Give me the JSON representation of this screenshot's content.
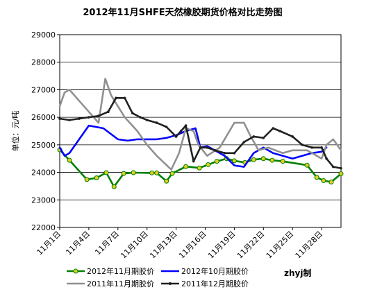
{
  "chart_data": {
    "type": "line",
    "title": "2012年11月SHFE天然橡胶期货价格对比走势图",
    "ylabel": "单位：元/吨",
    "ylim": [
      22000,
      29000
    ],
    "yticks": [
      22000,
      23000,
      24000,
      25000,
      26000,
      27000,
      28000,
      29000
    ],
    "xlim": [
      1,
      30
    ],
    "xticks": [
      {
        "x": 1,
        "label": "11月1日"
      },
      {
        "x": 4,
        "label": "11月4日"
      },
      {
        "x": 7,
        "label": "11月7日"
      },
      {
        "x": 10,
        "label": "11月10日"
      },
      {
        "x": 13,
        "label": "11月13日"
      },
      {
        "x": 16,
        "label": "11月16日"
      },
      {
        "x": 19,
        "label": "11月19日"
      },
      {
        "x": 22,
        "label": "11月22日"
      },
      {
        "x": 25,
        "label": "11月25日"
      },
      {
        "x": 28,
        "label": "11月28日"
      }
    ],
    "grid": true,
    "legend_position": "bottom",
    "note": "zhyj制",
    "series": [
      {
        "name": "2012年11月期胶价",
        "color": "#008000",
        "markers": true,
        "x": [
          1,
          2,
          3.8,
          4.8,
          5.8,
          6.6,
          7.6,
          8.6,
          10.5,
          11,
          12,
          12.6,
          14,
          15.4,
          16.3,
          17.2,
          18.2,
          19,
          20.1,
          21,
          22,
          22.9,
          24,
          26.5,
          27.5,
          28.2,
          29,
          30
        ],
        "y": [
          24820,
          24440,
          23740,
          23800,
          23990,
          23480,
          23960,
          23990,
          23980,
          23980,
          23680,
          23960,
          24210,
          24160,
          24280,
          24400,
          24500,
          24420,
          24360,
          24460,
          24500,
          24440,
          24400,
          24260,
          23820,
          23700,
          23650,
          23950
        ]
      },
      {
        "name": "2012年10月期胶价",
        "color": "#0000ff",
        "markers": false,
        "x": [
          1,
          1.5,
          2,
          4,
          5.5,
          7,
          8,
          9,
          10,
          11,
          12,
          13,
          14,
          15,
          15.5,
          16.2,
          17,
          18,
          19,
          20,
          21,
          22,
          23,
          24,
          25,
          26,
          27,
          28,
          28.5
        ],
        "y": [
          24900,
          24600,
          24700,
          25700,
          25600,
          25200,
          25150,
          25200,
          25200,
          25200,
          25250,
          25350,
          25500,
          25600,
          24900,
          24950,
          24800,
          24600,
          24250,
          24200,
          24700,
          24900,
          24700,
          24600,
          24500,
          24600,
          24700,
          24750,
          24900
        ]
      },
      {
        "name": "2011年11月期胶价",
        "color": "#909090",
        "markers": false,
        "x": [
          1,
          1.5,
          2,
          3,
          4,
          5,
          5.7,
          6.3,
          7,
          7.7,
          9,
          10,
          11,
          12.5,
          13.3,
          14,
          14.8,
          15.3,
          16.2,
          17.5,
          19,
          20,
          20.7,
          21.5,
          22.5,
          24,
          25,
          26.5,
          28,
          28.5,
          29.2,
          30
        ],
        "y": [
          26400,
          26900,
          27000,
          26600,
          26200,
          25800,
          27400,
          26800,
          26400,
          26000,
          25500,
          25000,
          24600,
          24100,
          24700,
          25600,
          25500,
          25000,
          24600,
          24900,
          25800,
          25800,
          25300,
          24800,
          24900,
          24700,
          24800,
          24800,
          24500,
          25000,
          25200,
          24800
        ]
      },
      {
        "name": "2011年12月期胶价",
        "color": "#202020",
        "markers": true,
        "x": [
          1,
          2,
          3,
          4,
          5,
          6,
          6.8,
          7.7,
          8.5,
          9.3,
          10,
          11,
          12,
          13,
          13.5,
          14,
          14.8,
          15.5,
          16.2,
          17,
          18,
          19,
          20,
          21,
          22,
          23,
          23.7,
          25,
          26,
          27,
          28,
          28.5,
          29.2,
          30
        ],
        "y": [
          25950,
          25900,
          25950,
          26000,
          26050,
          26200,
          26700,
          26700,
          26150,
          26000,
          25900,
          25800,
          25650,
          25300,
          25500,
          25700,
          24400,
          24900,
          24900,
          24800,
          24700,
          24700,
          25100,
          25300,
          25250,
          25600,
          25500,
          25300,
          25000,
          24900,
          24900,
          24500,
          24200,
          24150
        ]
      }
    ]
  }
}
